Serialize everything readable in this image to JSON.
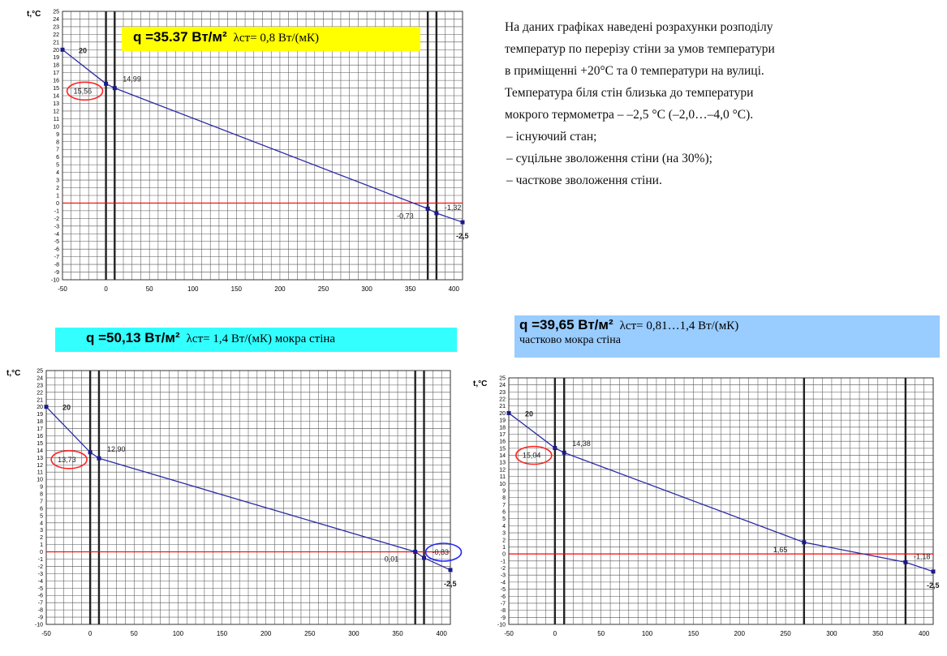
{
  "description": {
    "paragraph": [
      "На даних графіках наведені розрахунки розподілу",
      "температур по перерізу стіни за умов температури",
      "в приміщенні +20°С та 0 температури на вулиці.",
      "Температура біля стін близька до температури",
      "мокрого термометра –  –2,5 °С (–2,0…–4,0 °С)."
    ],
    "bullets": [
      "– існуючий стан;",
      "– суцільне зволоження стіни (на 30%);",
      "– часткове зволоження стіни."
    ]
  },
  "badges": [
    {
      "q": "q =35.37 Вт/м²",
      "lambda": "λст= 0,8 Вт/(мК)",
      "sub": "",
      "color": "#ffff00"
    },
    {
      "q": "q =50,13 Вт/м²",
      "lambda": "λст= 1,4 Вт/(мК) мокра стіна",
      "sub": "",
      "color": "#33ffff"
    },
    {
      "q": "q =39,65 Вт/м²",
      "lambda": "λст= 0,81…1,4  Вт/(мК)",
      "sub": "частково мокра стіна",
      "color": "#99ccff"
    }
  ],
  "chart_data": [
    {
      "type": "line",
      "ylabel": "t,°C",
      "xlim": [
        -50,
        410
      ],
      "ylim": [
        -10,
        25
      ],
      "xticks": [
        -50,
        0,
        50,
        100,
        150,
        200,
        250,
        300,
        350,
        400
      ],
      "yticks": [
        25,
        24,
        23,
        22,
        21,
        20,
        19,
        18,
        17,
        16,
        15,
        14,
        13,
        12,
        11,
        10,
        9,
        8,
        7,
        6,
        5,
        4,
        3,
        2,
        1,
        0,
        -1,
        -2,
        -3,
        -4,
        -5,
        -6,
        -7,
        -8,
        -9,
        -10
      ],
      "grid": true,
      "wall_lines_x": [
        0,
        10,
        370,
        380
      ],
      "zero_line_color": "#ff0000",
      "series": [
        {
          "x": [
            -50,
            0,
            10,
            370,
            380,
            410
          ],
          "y": [
            20,
            15.56,
            14.99,
            -0.73,
            -1.32,
            -2.5
          ]
        }
      ],
      "labels": [
        {
          "text": "20",
          "x": -50,
          "y": 20,
          "bold": true,
          "circle": false,
          "color": ""
        },
        {
          "text": "15,56",
          "x": 0,
          "y": 15.56,
          "bold": false,
          "circle": true,
          "color": "#ff2222"
        },
        {
          "text": "14,99",
          "x": 10,
          "y": 14.99,
          "bold": false,
          "circle": false,
          "color": ""
        },
        {
          "text": "-0,73",
          "x": 370,
          "y": -0.73,
          "bold": false,
          "circle": false,
          "color": ""
        },
        {
          "text": "-1,32",
          "x": 380,
          "y": -1.32,
          "bold": false,
          "circle": false,
          "color": ""
        },
        {
          "text": "-2,5",
          "x": 410,
          "y": -2.5,
          "bold": true,
          "circle": false,
          "color": ""
        }
      ]
    },
    {
      "type": "line",
      "ylabel": "t,°C",
      "xlim": [
        -50,
        410
      ],
      "ylim": [
        -10,
        25
      ],
      "xticks": [
        -50,
        0,
        50,
        100,
        150,
        200,
        250,
        300,
        350,
        400
      ],
      "yticks": [
        25,
        24,
        23,
        22,
        21,
        20,
        19,
        18,
        17,
        16,
        15,
        14,
        13,
        12,
        11,
        10,
        9,
        8,
        7,
        6,
        5,
        4,
        3,
        2,
        1,
        0,
        -1,
        -2,
        -3,
        -4,
        -5,
        -6,
        -7,
        -8,
        -9,
        -10
      ],
      "grid": true,
      "wall_lines_x": [
        0,
        10,
        370,
        380
      ],
      "zero_line_color": "#ff0000",
      "series": [
        {
          "x": [
            -50,
            0,
            10,
            370,
            380,
            410
          ],
          "y": [
            20,
            13.73,
            12.9,
            0.01,
            -0.83,
            -2.5
          ]
        }
      ],
      "labels": [
        {
          "text": "20",
          "x": -50,
          "y": 20,
          "bold": true,
          "circle": false,
          "color": ""
        },
        {
          "text": "13,73",
          "x": 0,
          "y": 13.73,
          "bold": false,
          "circle": true,
          "color": "#ff2222"
        },
        {
          "text": "12,90",
          "x": 10,
          "y": 12.9,
          "bold": false,
          "circle": false,
          "color": ""
        },
        {
          "text": "0,01",
          "x": 370,
          "y": 0.01,
          "bold": false,
          "circle": false,
          "color": ""
        },
        {
          "text": "-0,83",
          "x": 380,
          "y": -0.83,
          "bold": false,
          "circle": true,
          "color": "#2222ff"
        },
        {
          "text": "-2,5",
          "x": 410,
          "y": -2.5,
          "bold": true,
          "circle": false,
          "color": ""
        }
      ]
    },
    {
      "type": "line",
      "ylabel": "t,°C",
      "xlim": [
        -50,
        410
      ],
      "ylim": [
        -10,
        25
      ],
      "xticks": [
        -50,
        0,
        50,
        100,
        150,
        200,
        250,
        300,
        350,
        400
      ],
      "yticks": [
        25,
        24,
        23,
        22,
        21,
        20,
        19,
        18,
        17,
        16,
        15,
        14,
        13,
        12,
        11,
        10,
        9,
        8,
        7,
        6,
        5,
        4,
        3,
        2,
        1,
        0,
        -1,
        -2,
        -3,
        -4,
        -5,
        -6,
        -7,
        -8,
        -9,
        -10
      ],
      "grid": true,
      "wall_lines_x": [
        0,
        10,
        270,
        380
      ],
      "zero_line_color": "#ff0000",
      "series": [
        {
          "x": [
            -50,
            0,
            10,
            270,
            380,
            410
          ],
          "y": [
            20,
            15.04,
            14.38,
            1.65,
            -1.18,
            -2.5
          ]
        }
      ],
      "labels": [
        {
          "text": "20",
          "x": -50,
          "y": 20,
          "bold": true,
          "circle": false,
          "color": ""
        },
        {
          "text": "15,04",
          "x": 0,
          "y": 15.04,
          "bold": false,
          "circle": true,
          "color": "#ff2222"
        },
        {
          "text": "14,38",
          "x": 10,
          "y": 14.38,
          "bold": false,
          "circle": false,
          "color": ""
        },
        {
          "text": "1,65",
          "x": 270,
          "y": 1.65,
          "bold": false,
          "circle": false,
          "color": ""
        },
        {
          "text": "-1,18",
          "x": 380,
          "y": -1.18,
          "bold": false,
          "circle": false,
          "color": ""
        },
        {
          "text": "-2,5",
          "x": 410,
          "y": -2.5,
          "bold": true,
          "circle": false,
          "color": ""
        }
      ]
    }
  ]
}
